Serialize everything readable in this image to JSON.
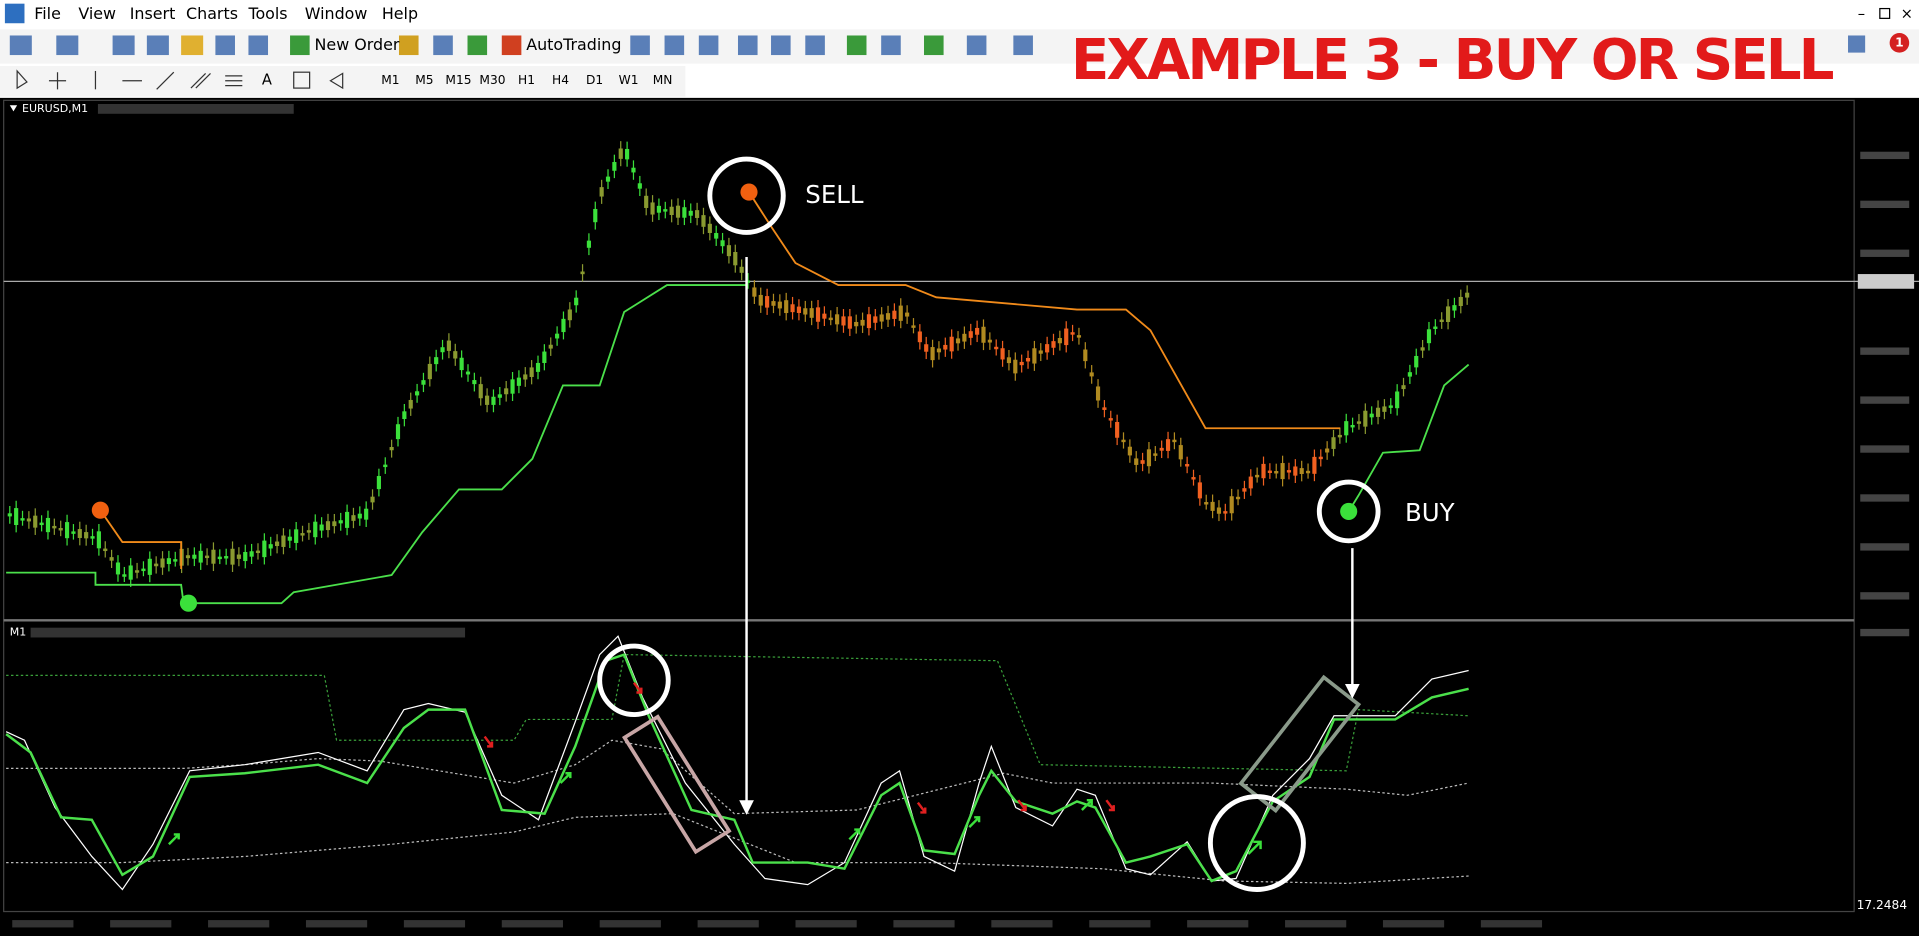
{
  "menu": [
    "File",
    "View",
    "Insert",
    "Charts",
    "Tools",
    "Window",
    "Help"
  ],
  "toolbar": {
    "new_order": "New Order",
    "auto_trading": "AutoTrading",
    "notifications": "1"
  },
  "timeframes": [
    "M1",
    "M5",
    "M15",
    "M30",
    "H1",
    "H4",
    "D1",
    "W1",
    "MN"
  ],
  "banner": "EXAMPLE 3 - BUY OR SELL",
  "chart": {
    "symbol": "EURUSD,M1",
    "sell_label": "SELL",
    "buy_label": "BUY",
    "indicator_label": "M1",
    "indicator_value": "17.2484"
  }
}
